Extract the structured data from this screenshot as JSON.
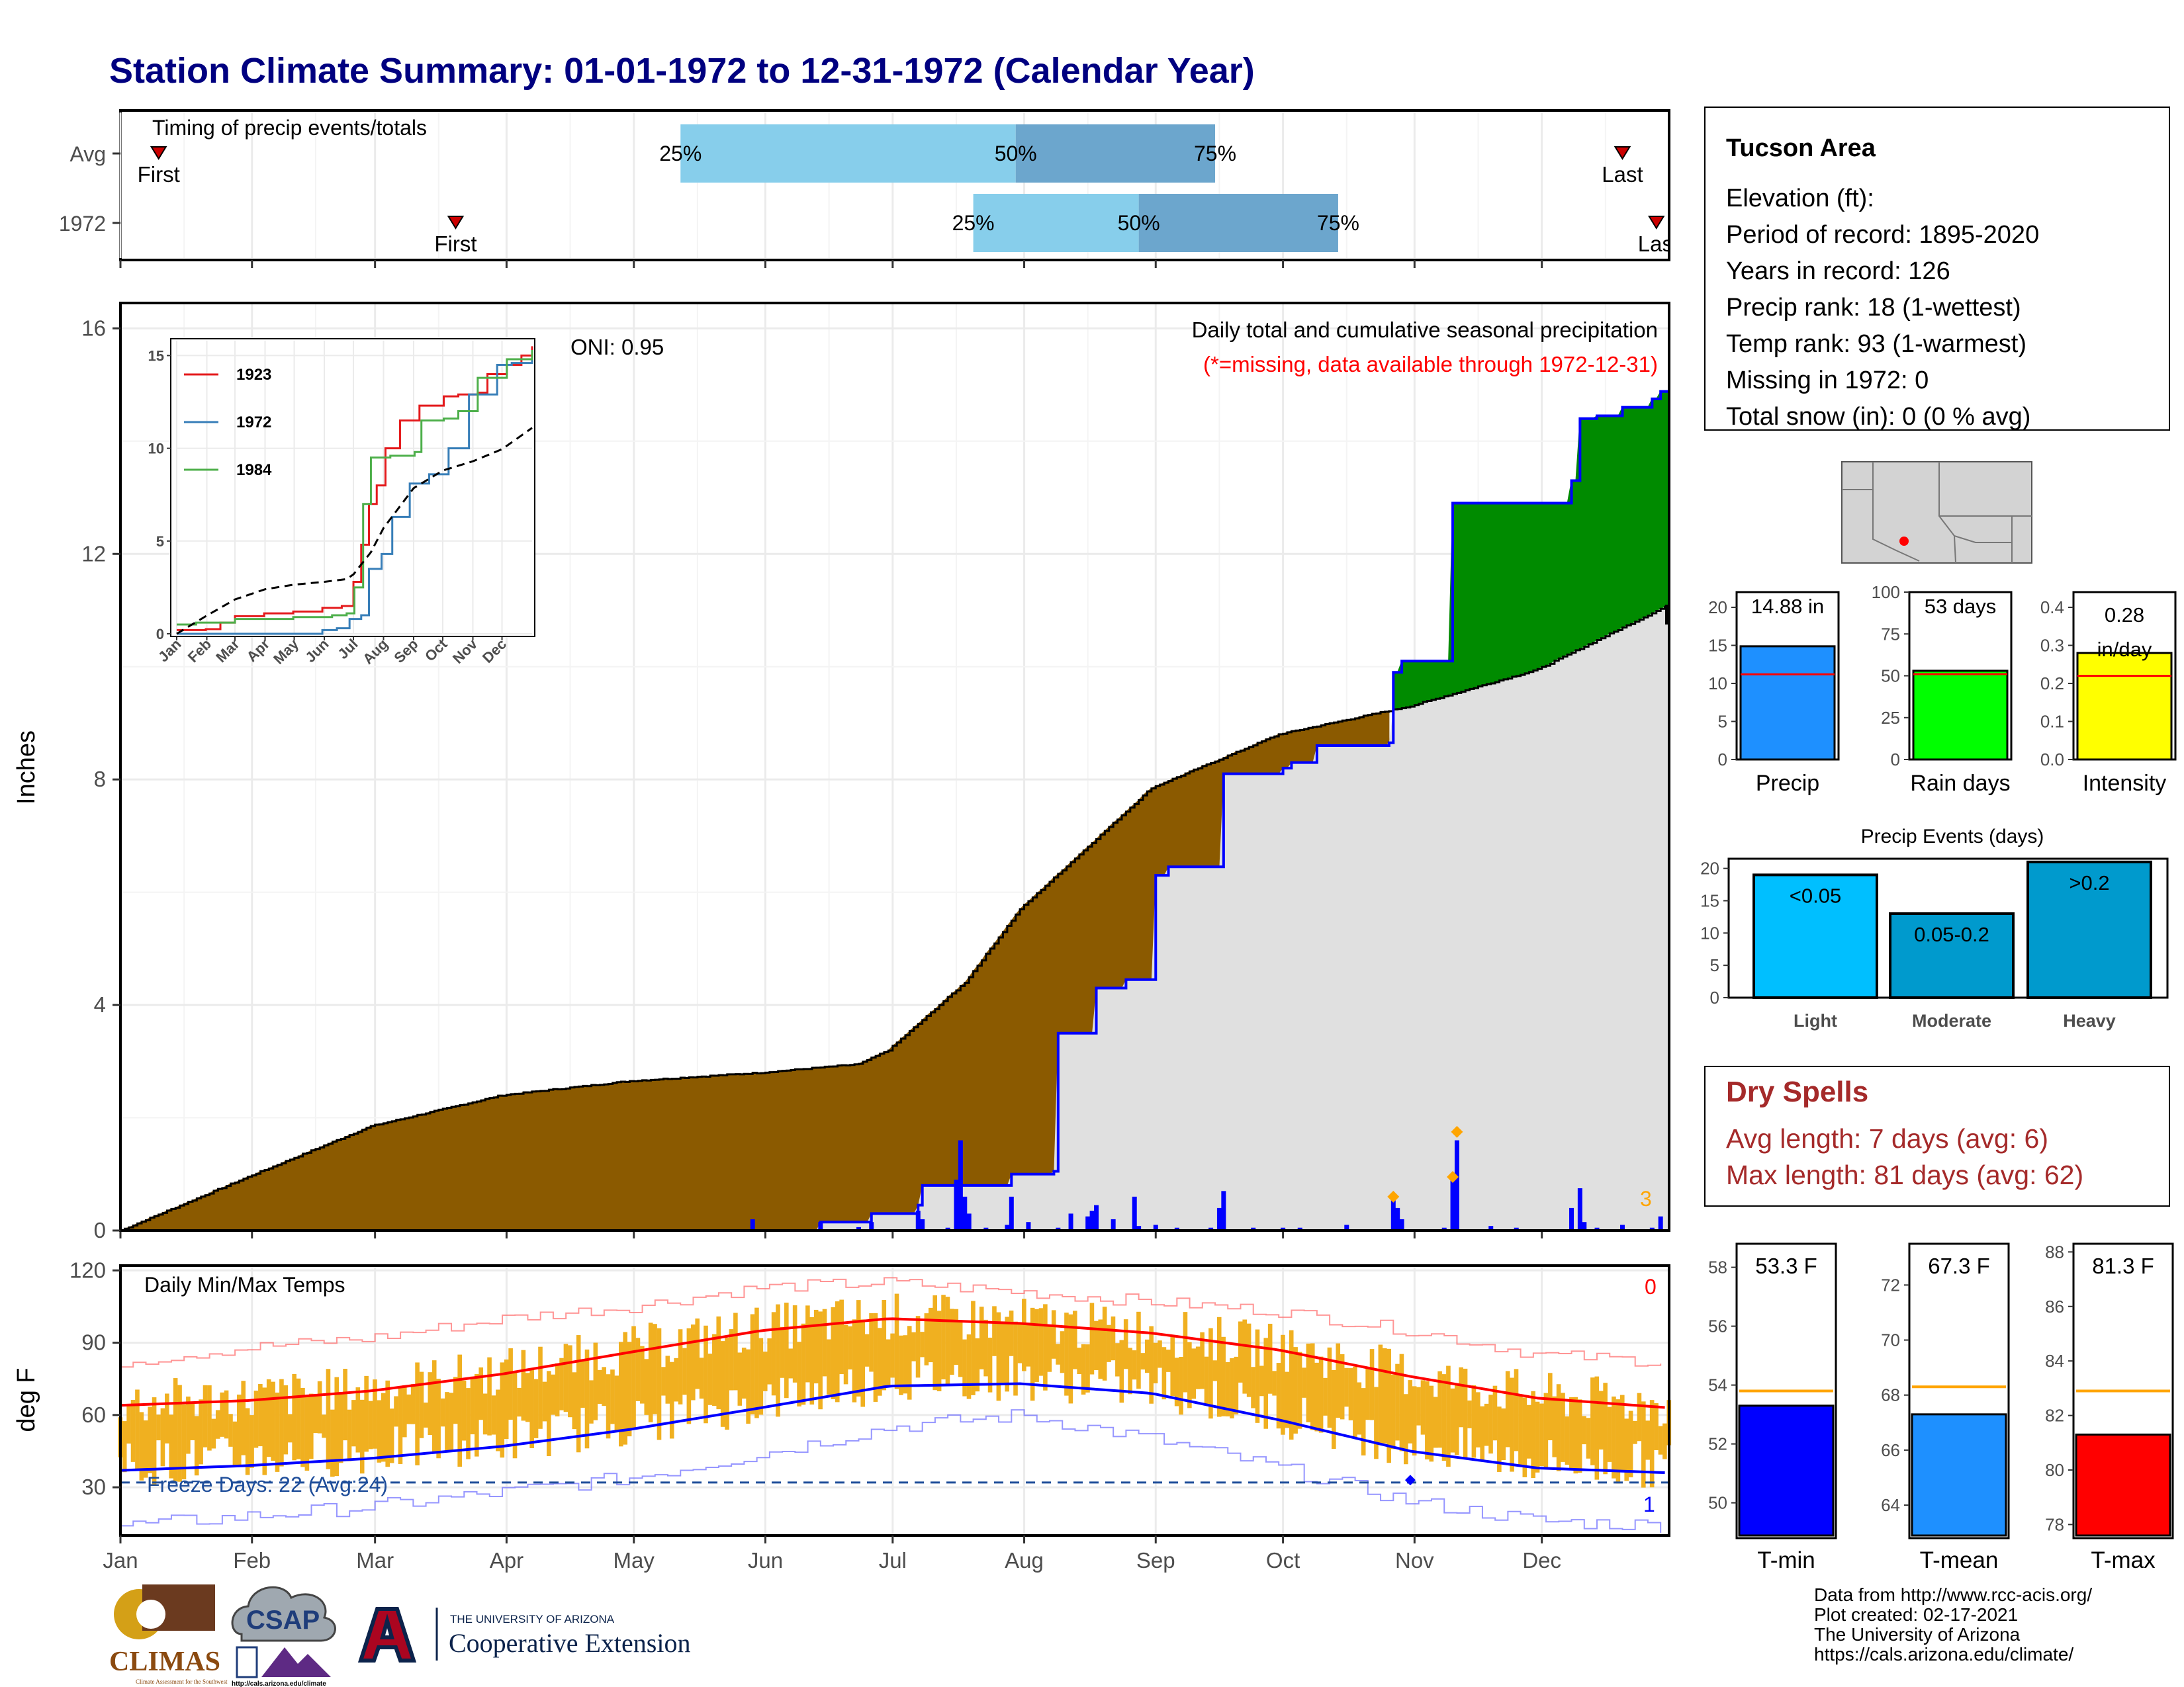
{
  "title": "Station Climate Summary: 01-01-1972 to 12-31-1972 (Calendar Year)",
  "colors": {
    "title": "#000080",
    "q_light": "#87CEEB",
    "q_dark": "#6CA6CD",
    "brown": "#8B5A00",
    "green": "#008B00",
    "gray_fill": "#E0E0E0",
    "blue_line": "#0000FF",
    "red": "#FF0000",
    "orange_bars": "#F0B020",
    "precip_bar": "#1E90FF",
    "raindays_bar": "#00FF00",
    "intensity_bar": "#FFFF00",
    "light_bar": "#00BFFF",
    "moderate_bar": "#009ACD",
    "heavy_bar": "#009ACD",
    "tmin_bar": "#0000FF",
    "tmean_bar": "#1E90FF",
    "tmax_bar": "#FF0000",
    "dry_spells": "#A52A2A",
    "avg_line_orange": "#FFA500"
  },
  "timing": {
    "caption": "Timing of precip events/totals",
    "rows": [
      {
        "label": "Avg",
        "first_label": "First",
        "last_label": "Last",
        "first_day": 10,
        "last_day": 355,
        "q25": 133,
        "q50": 212,
        "q75": 259,
        "q25_label": "25%",
        "q50_label": "50%",
        "q75_label": "75%"
      },
      {
        "label": "1972",
        "first_label": "First",
        "last_label": "Last",
        "first_day": 80,
        "last_day": 363,
        "q25": 202,
        "q50": 241,
        "q75": 288,
        "q25_label": "25%",
        "q50_label": "50%",
        "q75_label": "75%"
      }
    ]
  },
  "precip_panel": {
    "ylabel": "Inches",
    "yticks": [
      0,
      4,
      8,
      12,
      16
    ],
    "oni_label": "ONI: 0.95",
    "caption": "Daily total and cumulative seasonal precipitation",
    "missing_note": "(*=missing, data available through 1972-12-31)",
    "missing_count": "3"
  },
  "inset": {
    "yticks": [
      "0",
      "5",
      "10",
      "15"
    ],
    "months": [
      "Jan",
      "Feb",
      "Mar",
      "Apr",
      "May",
      "Jun",
      "Jul",
      "Aug",
      "Sep",
      "Oct",
      "Nov",
      "Dec"
    ],
    "legend": [
      {
        "name": "1923",
        "color": "#E41A1C"
      },
      {
        "name": "1972",
        "color": "#377EB8"
      },
      {
        "name": "1984",
        "color": "#4DAF4A"
      }
    ]
  },
  "temp_panel": {
    "ylabel": "deg F",
    "caption": "Daily Min/Max Temps",
    "yticks": [
      30,
      60,
      90,
      120
    ],
    "freeze_label": "Freeze Days: 22 (Avg:24)",
    "count_top": "0",
    "count_bottom": "1"
  },
  "months": [
    "Jan",
    "Feb",
    "Mar",
    "Apr",
    "May",
    "Jun",
    "Jul",
    "Aug",
    "Sep",
    "Oct",
    "Nov",
    "Dec"
  ],
  "station": {
    "name": "Tucson Area",
    "lines": [
      "Elevation (ft):",
      "Period of record: 1895-2020",
      "Years in record: 126",
      "Precip rank: 18 (1-wettest)",
      "Temp rank: 93 (1-warmest)",
      "Missing in 1972: 0",
      "Total snow (in): 0 (0 % avg)"
    ]
  },
  "mini_bars": [
    {
      "label": "Precip",
      "value_label": "14.88 in",
      "value": 14.88,
      "avg": 11.2,
      "max": 22,
      "yticks": [
        "0",
        "5",
        "10",
        "15",
        "20"
      ],
      "tickvals": [
        0,
        5,
        10,
        15,
        20
      ],
      "color": "#1E90FF"
    },
    {
      "label": "Rain days",
      "value_label": "53 days",
      "value": 53,
      "avg": 51,
      "max": 100,
      "yticks": [
        "0",
        "25",
        "50",
        "75",
        "100"
      ],
      "tickvals": [
        0,
        25,
        50,
        75,
        100
      ],
      "color": "#00FF00"
    },
    {
      "label": "Intensity",
      "value_label": "0.28\nin/day",
      "value_line1": "0.28",
      "value_line2": "in/day",
      "value": 0.28,
      "avg": 0.22,
      "max": 0.44,
      "yticks": [
        "0.0",
        "0.1",
        "0.2",
        "0.3",
        "0.4"
      ],
      "tickvals": [
        0,
        0.1,
        0.2,
        0.3,
        0.4
      ],
      "color": "#FFFF00"
    }
  ],
  "events": {
    "title": "Precip Events (days)",
    "yticks": [
      "0",
      "5",
      "10",
      "15",
      "20"
    ],
    "tickvals": [
      0,
      5,
      10,
      15,
      20
    ],
    "max": 21.5,
    "bars": [
      {
        "category": "Light",
        "label": "<0.05",
        "value": 19,
        "color": "#00BFFF"
      },
      {
        "category": "Moderate",
        "label": "0.05-0.2",
        "value": 13,
        "color": "#009ACD"
      },
      {
        "category": "Heavy",
        "label": ">0.2",
        "value": 21,
        "color": "#009ACD"
      }
    ]
  },
  "dry_spells": {
    "title": "Dry Spells",
    "avg_line": "Avg length: 7 days (avg: 6)",
    "max_line": "Max length: 81 days (avg: 62)"
  },
  "temp_bars": [
    {
      "label": "T-min",
      "value_label": "53.3 F",
      "value": 53.3,
      "avg": 53.8,
      "ymin": 48.8,
      "ymax": 58.8,
      "yticks": [
        "50",
        "52",
        "54",
        "56",
        "58"
      ],
      "tickvals": [
        50,
        52,
        54,
        56,
        58
      ],
      "color": "#0000FF"
    },
    {
      "label": "T-mean",
      "value_label": "67.3 F",
      "value": 67.3,
      "avg": 68.3,
      "ymin": 62.8,
      "ymax": 73.5,
      "yticks": [
        "64",
        "66",
        "68",
        "70",
        "72"
      ],
      "tickvals": [
        64,
        66,
        68,
        70,
        72
      ],
      "color": "#1E90FF"
    },
    {
      "label": "T-max",
      "value_label": "81.3 F",
      "value": 81.3,
      "avg": 82.9,
      "ymin": 77.5,
      "ymax": 88.3,
      "yticks": [
        "78",
        "80",
        "82",
        "84",
        "86",
        "88"
      ],
      "tickvals": [
        78,
        80,
        82,
        84,
        86,
        88
      ],
      "color": "#FF0000"
    }
  ],
  "footer": {
    "lines": [
      "Data from http://www.rcc-acis.org/",
      "Plot created: 02-17-2021",
      "The University of Arizona",
      "https://cals.arizona.edu/climate/"
    ],
    "climas": "CLIMAS",
    "climas_sub": "Climate Assessment for the Southwest",
    "csap": "CSAP",
    "csap_url": "http://cals.arizona.edu/climate",
    "ua_small": "THE UNIVERSITY OF ARIZONA",
    "ua_big": "Cooperative Extension"
  },
  "chart_data": {
    "type": "area",
    "title": "Station Climate Summary: 01-01-1972 to 12-31-1972 (Calendar Year)",
    "ylabel": "Inches",
    "ylim": [
      0,
      16
    ],
    "cumulative_1972": [
      {
        "day": 1,
        "in": 0.0
      },
      {
        "day": 165,
        "in": 0.0
      },
      {
        "day": 166,
        "in": 0.15
      },
      {
        "day": 178,
        "in": 0.3
      },
      {
        "day": 189,
        "in": 0.45
      },
      {
        "day": 190,
        "in": 0.8
      },
      {
        "day": 210,
        "in": 0.8
      },
      {
        "day": 211,
        "in": 1.0
      },
      {
        "day": 221,
        "in": 1.05
      },
      {
        "day": 222,
        "in": 3.5
      },
      {
        "day": 230,
        "in": 3.5
      },
      {
        "day": 231,
        "in": 4.3
      },
      {
        "day": 238,
        "in": 4.45
      },
      {
        "day": 245,
        "in": 6.3
      },
      {
        "day": 248,
        "in": 6.45
      },
      {
        "day": 260,
        "in": 6.45
      },
      {
        "day": 261,
        "in": 8.1
      },
      {
        "day": 275,
        "in": 8.2
      },
      {
        "day": 277,
        "in": 8.3
      },
      {
        "day": 283,
        "in": 8.6
      },
      {
        "day": 300,
        "in": 8.65
      },
      {
        "day": 301,
        "in": 9.9
      },
      {
        "day": 303,
        "in": 10.1
      },
      {
        "day": 314,
        "in": 10.1
      },
      {
        "day": 315,
        "in": 12.9
      },
      {
        "day": 342,
        "in": 12.9
      },
      {
        "day": 343,
        "in": 13.3
      },
      {
        "day": 345,
        "in": 14.4
      },
      {
        "day": 349,
        "in": 14.45
      },
      {
        "day": 355,
        "in": 14.6
      },
      {
        "day": 362,
        "in": 14.75
      },
      {
        "day": 364,
        "in": 14.88
      },
      {
        "day": 366,
        "in": 14.88
      }
    ],
    "cumulative_avg": [
      {
        "day": 1,
        "in": 0.0
      },
      {
        "day": 31,
        "in": 0.95
      },
      {
        "day": 60,
        "in": 1.85
      },
      {
        "day": 91,
        "in": 2.4
      },
      {
        "day": 121,
        "in": 2.65
      },
      {
        "day": 152,
        "in": 2.8
      },
      {
        "day": 175,
        "in": 2.95
      },
      {
        "day": 182,
        "in": 3.2
      },
      {
        "day": 200,
        "in": 4.4
      },
      {
        "day": 213,
        "in": 5.7
      },
      {
        "day": 244,
        "in": 7.85
      },
      {
        "day": 274,
        "in": 8.8
      },
      {
        "day": 305,
        "in": 9.3
      },
      {
        "day": 335,
        "in": 9.95
      },
      {
        "day": 366,
        "in": 11.1
      }
    ],
    "daily_1972": [
      {
        "day": 150,
        "in": 0.2
      },
      {
        "day": 166,
        "in": 0.15
      },
      {
        "day": 175,
        "in": 0.06
      },
      {
        "day": 178,
        "in": 0.15
      },
      {
        "day": 189,
        "in": 0.35
      },
      {
        "day": 190,
        "in": 0.2
      },
      {
        "day": 196,
        "in": 0.05
      },
      {
        "day": 198,
        "in": 0.9
      },
      {
        "day": 199,
        "in": 1.6
      },
      {
        "day": 200,
        "in": 0.6
      },
      {
        "day": 201,
        "in": 0.3
      },
      {
        "day": 205,
        "in": 0.05
      },
      {
        "day": 210,
        "in": 0.1
      },
      {
        "day": 211,
        "in": 0.6
      },
      {
        "day": 215,
        "in": 0.15
      },
      {
        "day": 222,
        "in": 0.05
      },
      {
        "day": 225,
        "in": 0.3
      },
      {
        "day": 229,
        "in": 0.25
      },
      {
        "day": 230,
        "in": 0.35
      },
      {
        "day": 231,
        "in": 0.45
      },
      {
        "day": 235,
        "in": 0.2
      },
      {
        "day": 240,
        "in": 0.6
      },
      {
        "day": 241,
        "in": 0.08
      },
      {
        "day": 245,
        "in": 0.1
      },
      {
        "day": 250,
        "in": 0.05
      },
      {
        "day": 258,
        "in": 0.05
      },
      {
        "day": 260,
        "in": 0.4
      },
      {
        "day": 261,
        "in": 0.7
      },
      {
        "day": 268,
        "in": 0.05
      },
      {
        "day": 275,
        "in": 0.05
      },
      {
        "day": 279,
        "in": 0.05
      },
      {
        "day": 290,
        "in": 0.1
      },
      {
        "day": 301,
        "in": 0.6
      },
      {
        "day": 302,
        "in": 0.4
      },
      {
        "day": 303,
        "in": 0.2
      },
      {
        "day": 313,
        "in": 0.05
      },
      {
        "day": 315,
        "in": 0.9
      },
      {
        "day": 316,
        "in": 1.6
      },
      {
        "day": 324,
        "in": 0.08
      },
      {
        "day": 330,
        "in": 0.05
      },
      {
        "day": 343,
        "in": 0.4
      },
      {
        "day": 345,
        "in": 0.75
      },
      {
        "day": 346,
        "in": 0.15
      },
      {
        "day": 349,
        "in": 0.05
      },
      {
        "day": 355,
        "in": 0.1
      },
      {
        "day": 362,
        "in": 0.05
      },
      {
        "day": 364,
        "in": 0.25
      }
    ],
    "inset_series": {
      "1923": [
        [
          0,
          0.2
        ],
        [
          30,
          0.25
        ],
        [
          45,
          0.6
        ],
        [
          60,
          0.95
        ],
        [
          90,
          1.1
        ],
        [
          120,
          1.2
        ],
        [
          150,
          1.4
        ],
        [
          170,
          1.5
        ],
        [
          182,
          2.8
        ],
        [
          190,
          4.8
        ],
        [
          198,
          7.0
        ],
        [
          206,
          8.0
        ],
        [
          215,
          10.0
        ],
        [
          230,
          11.5
        ],
        [
          250,
          12.3
        ],
        [
          275,
          12.8
        ],
        [
          290,
          12.9
        ],
        [
          310,
          13.0
        ],
        [
          320,
          14.0
        ],
        [
          340,
          14.5
        ],
        [
          355,
          15.0
        ],
        [
          366,
          15.5
        ]
      ],
      "1972": [
        [
          0,
          0
        ],
        [
          150,
          0.2
        ],
        [
          165,
          0.3
        ],
        [
          178,
          0.8
        ],
        [
          190,
          1.0
        ],
        [
          198,
          3.5
        ],
        [
          211,
          4.3
        ],
        [
          222,
          6.3
        ],
        [
          240,
          8.1
        ],
        [
          260,
          8.6
        ],
        [
          280,
          10.0
        ],
        [
          301,
          12.9
        ],
        [
          330,
          14.5
        ],
        [
          345,
          14.6
        ],
        [
          366,
          15.0
        ]
      ],
      "1984": [
        [
          0,
          0.5
        ],
        [
          20,
          0.6
        ],
        [
          60,
          0.8
        ],
        [
          120,
          0.9
        ],
        [
          160,
          1.0
        ],
        [
          175,
          1.1
        ],
        [
          183,
          2.5
        ],
        [
          192,
          7.0
        ],
        [
          200,
          9.5
        ],
        [
          220,
          9.6
        ],
        [
          245,
          9.8
        ],
        [
          252,
          11.5
        ],
        [
          275,
          11.6
        ],
        [
          290,
          12.0
        ],
        [
          310,
          13.8
        ],
        [
          340,
          14.8
        ],
        [
          366,
          15.3
        ]
      ],
      "avg": [
        [
          0,
          0
        ],
        [
          30,
          0.95
        ],
        [
          60,
          1.85
        ],
        [
          91,
          2.4
        ],
        [
          121,
          2.65
        ],
        [
          152,
          2.8
        ],
        [
          175,
          2.95
        ],
        [
          182,
          3.2
        ],
        [
          200,
          4.4
        ],
        [
          213,
          5.7
        ],
        [
          244,
          7.85
        ],
        [
          274,
          8.8
        ],
        [
          305,
          9.3
        ],
        [
          335,
          9.95
        ],
        [
          366,
          11.1
        ]
      ]
    },
    "temps": {
      "ylim": [
        10,
        122
      ],
      "avg_max": [
        [
          1,
          64
        ],
        [
          31,
          66
        ],
        [
          60,
          70
        ],
        [
          91,
          77
        ],
        [
          121,
          86
        ],
        [
          152,
          95
        ],
        [
          182,
          100
        ],
        [
          213,
          98
        ],
        [
          244,
          94
        ],
        [
          274,
          87
        ],
        [
          305,
          76
        ],
        [
          335,
          67
        ],
        [
          366,
          63
        ]
      ],
      "avg_min": [
        [
          1,
          37
        ],
        [
          31,
          39
        ],
        [
          60,
          42
        ],
        [
          91,
          47
        ],
        [
          121,
          54
        ],
        [
          152,
          63
        ],
        [
          182,
          72
        ],
        [
          213,
          73
        ],
        [
          244,
          69
        ],
        [
          274,
          58
        ],
        [
          305,
          45
        ],
        [
          335,
          38
        ],
        [
          366,
          36
        ]
      ],
      "record_max": [
        [
          1,
          82
        ],
        [
          31,
          88
        ],
        [
          60,
          92
        ],
        [
          91,
          100
        ],
        [
          121,
          105
        ],
        [
          152,
          113
        ],
        [
          182,
          115
        ],
        [
          213,
          111
        ],
        [
          244,
          107
        ],
        [
          274,
          103
        ],
        [
          305,
          95
        ],
        [
          335,
          85
        ],
        [
          366,
          82
        ]
      ],
      "record_min": [
        [
          1,
          14
        ],
        [
          31,
          18
        ],
        [
          60,
          22
        ],
        [
          91,
          28
        ],
        [
          121,
          34
        ],
        [
          152,
          44
        ],
        [
          182,
          55
        ],
        [
          213,
          60
        ],
        [
          244,
          50
        ],
        [
          274,
          38
        ],
        [
          305,
          24
        ],
        [
          335,
          16
        ],
        [
          366,
          14
        ]
      ],
      "freeze_threshold": 32
    }
  }
}
